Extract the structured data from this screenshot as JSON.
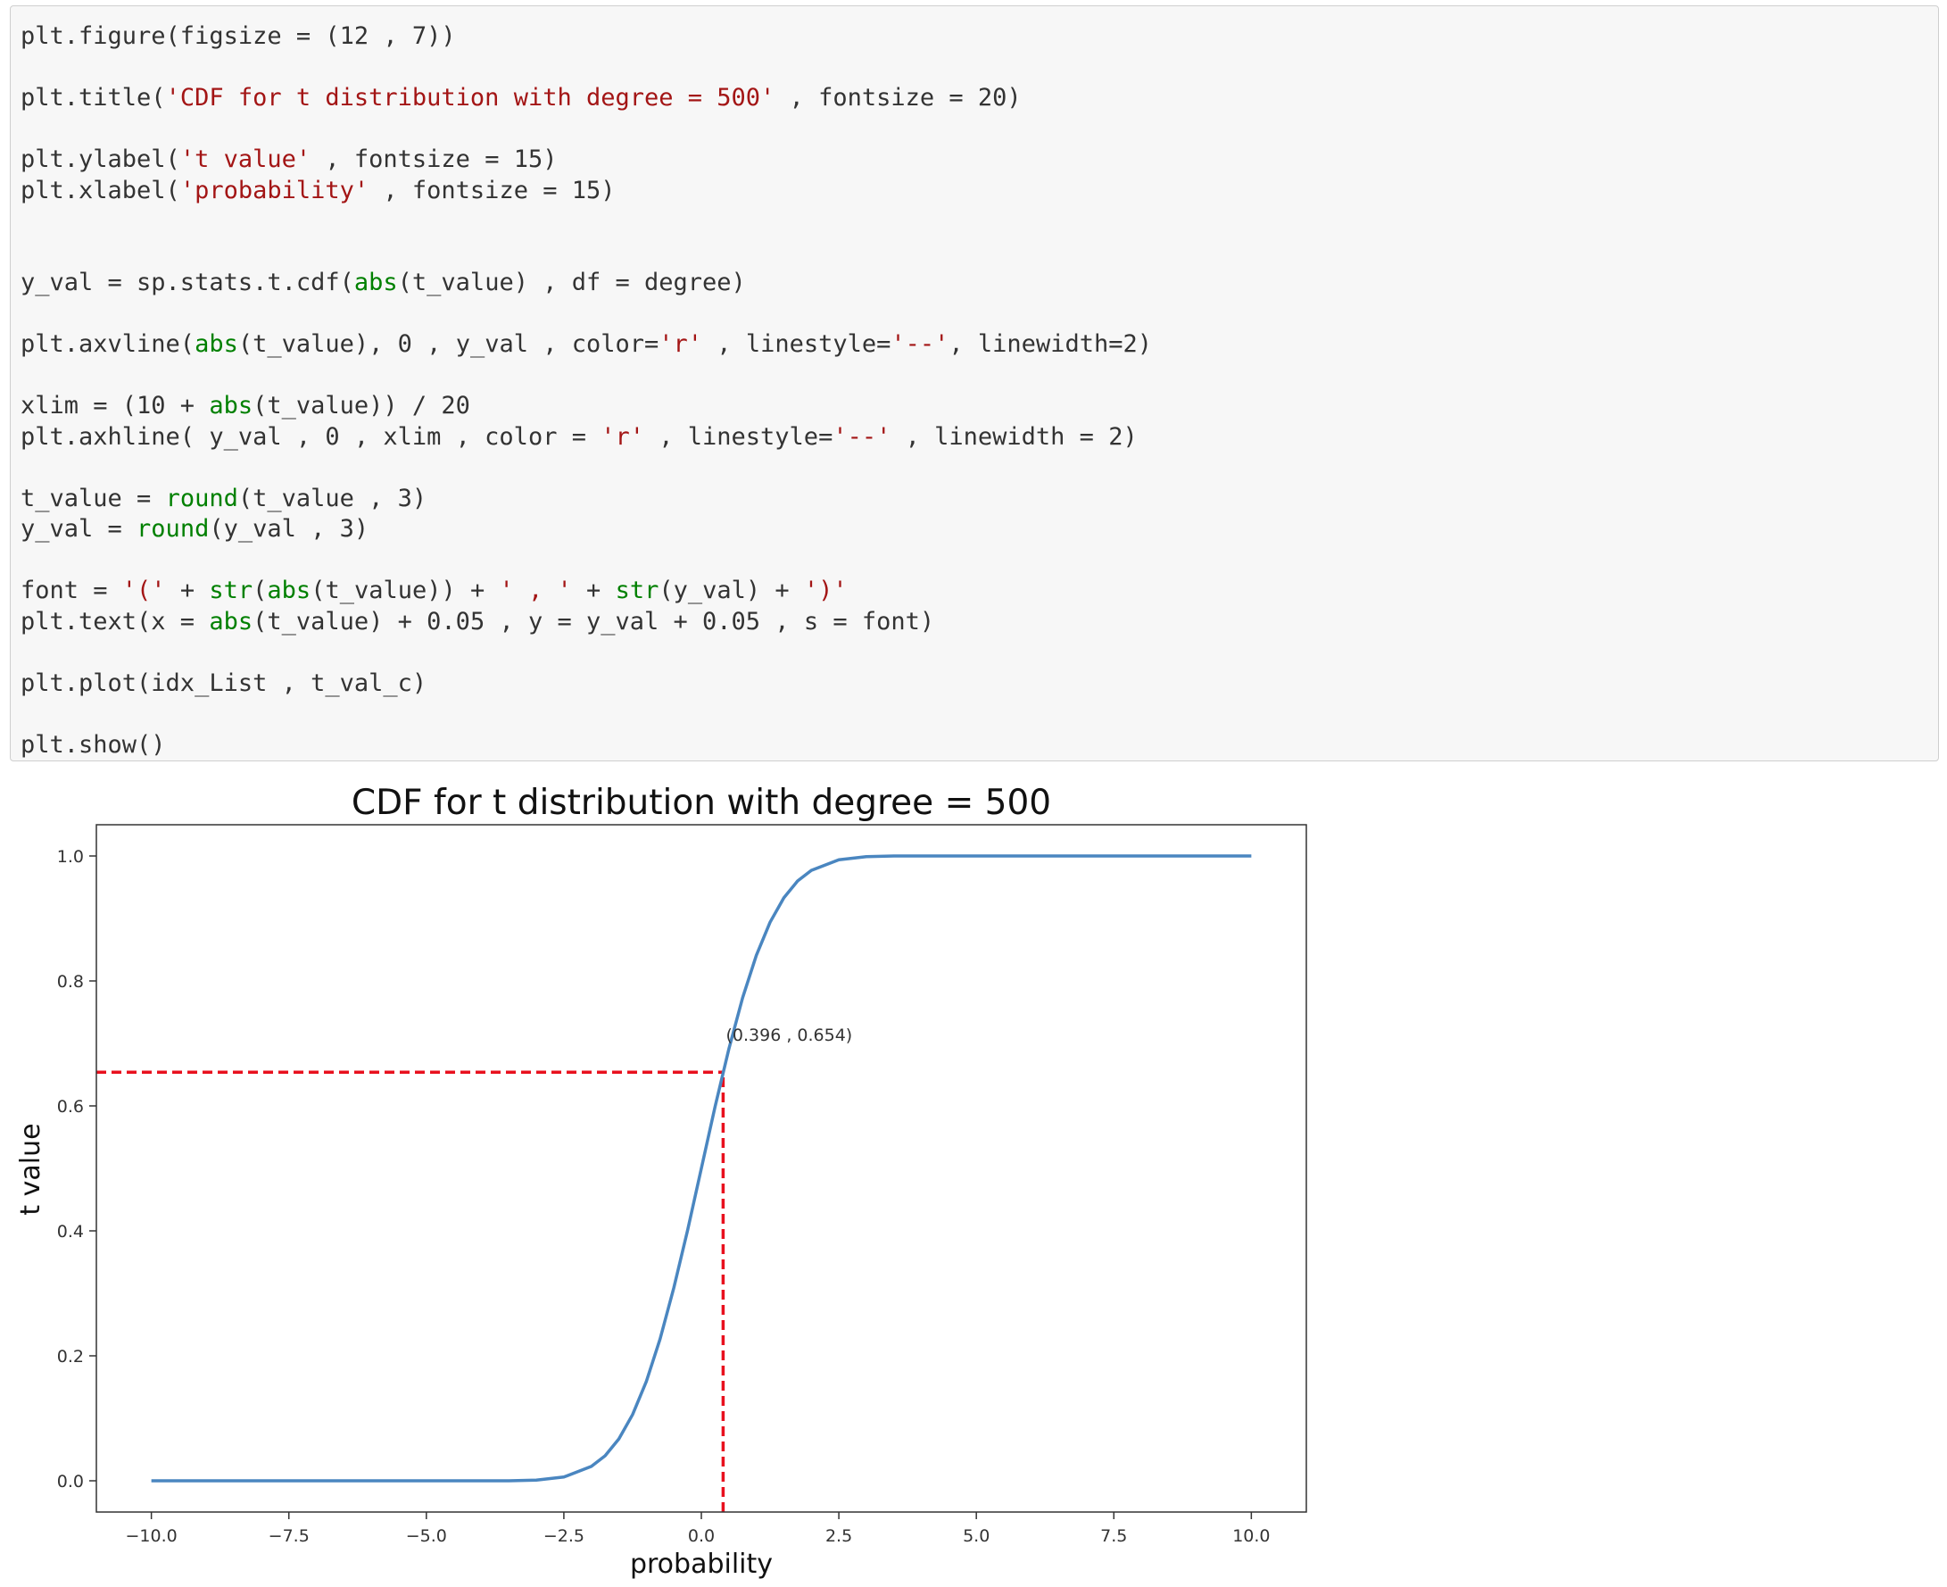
{
  "code": [
    [
      [
        {
          "text": "plt.figure(figsize = (12 , 7))"
        }
      ]
    ],
    [
      [
        {
          "text": "plt.title("
        },
        {
          "text": "'CDF for t distribution with degree = 500'",
          "color": "#a31515"
        },
        {
          "text": " , fontsize = 20)"
        }
      ]
    ],
    [
      [
        {
          "text": "plt.ylabel("
        },
        {
          "text": "'t value'",
          "color": "#a31515"
        },
        {
          "text": " , fontsize = 15)"
        }
      ],
      [
        {
          "text": "plt.xlabel("
        },
        {
          "text": "'probability'",
          "color": "#a31515"
        },
        {
          "text": " , fontsize = 15)"
        }
      ]
    ],
    [
      [
        {
          "text": "y_val = sp.stats.t.cdf("
        },
        {
          "text": "abs",
          "color": "#008000"
        },
        {
          "text": "(t_value) , df = degree)"
        }
      ]
    ],
    [
      [
        {
          "text": "plt.axvline("
        },
        {
          "text": "abs",
          "color": "#008000"
        },
        {
          "text": "(t_value), 0 , y_val , color="
        },
        {
          "text": "'r'",
          "color": "#a31515"
        },
        {
          "text": " , linestyle="
        },
        {
          "text": "'--'",
          "color": "#a31515"
        },
        {
          "text": ", linewidth=2)"
        }
      ]
    ],
    [
      [
        {
          "text": "xlim = (10 + "
        },
        {
          "text": "abs",
          "color": "#008000"
        },
        {
          "text": "(t_value)) / 20"
        }
      ],
      [
        {
          "text": "plt.axhline( y_val , 0 , xlim , color = "
        },
        {
          "text": "'r'",
          "color": "#a31515"
        },
        {
          "text": " , linestyle="
        },
        {
          "text": "'--'",
          "color": "#a31515"
        },
        {
          "text": " , linewidth = 2)"
        }
      ]
    ],
    [
      [
        {
          "text": "t_value = "
        },
        {
          "text": "round",
          "color": "#008000"
        },
        {
          "text": "(t_value , 3)"
        }
      ],
      [
        {
          "text": "y_val = "
        },
        {
          "text": "round",
          "color": "#008000"
        },
        {
          "text": "(y_val , 3)"
        }
      ]
    ],
    [
      [
        {
          "text": "font = "
        },
        {
          "text": "'('",
          "color": "#a31515"
        },
        {
          "text": " + "
        },
        {
          "text": "str",
          "color": "#008000"
        },
        {
          "text": "("
        },
        {
          "text": "abs",
          "color": "#008000"
        },
        {
          "text": "(t_value)) + "
        },
        {
          "text": "' , '",
          "color": "#a31515"
        },
        {
          "text": " + "
        },
        {
          "text": "str",
          "color": "#008000"
        },
        {
          "text": "(y_val) + "
        },
        {
          "text": "')'",
          "color": "#a31515"
        }
      ],
      [
        {
          "text": "plt.text(x = "
        },
        {
          "text": "abs",
          "color": "#008000"
        },
        {
          "text": "(t_value) + 0.05 , y = y_val + 0.05 , s = font)"
        }
      ]
    ],
    [
      [
        {
          "text": "plt.plot(idx_List , t_val_c)"
        }
      ]
    ],
    [
      [
        {
          "text": "plt.show()"
        }
      ]
    ]
  ],
  "chart_data": {
    "type": "line",
    "title": "CDF for t distribution with degree = 500",
    "x_label": "probability",
    "y_label": "t value",
    "x": [
      -10,
      -7.5,
      -5,
      -4,
      -3.5,
      -3,
      -2.5,
      -2,
      -1.75,
      -1.5,
      -1.25,
      -1,
      -0.75,
      -0.5,
      -0.25,
      0,
      0.25,
      0.5,
      0.75,
      1,
      1.25,
      1.5,
      1.75,
      2,
      2.5,
      3,
      3.5,
      4,
      5,
      7.5,
      10
    ],
    "series": [
      {
        "color": "#4a86c0",
        "values": [
          0,
          0,
          0,
          0,
          0,
          0.001,
          0.006,
          0.023,
          0.04,
          0.067,
          0.106,
          0.159,
          0.227,
          0.309,
          0.401,
          0.5,
          0.599,
          0.691,
          0.773,
          0.841,
          0.894,
          0.933,
          0.96,
          0.977,
          0.994,
          0.999,
          1,
          1,
          1,
          1,
          1
        ]
      }
    ],
    "reference_lines": {
      "x": 0.396,
      "y": 0.654,
      "color": "#e8101e"
    },
    "annotation": {
      "text": "(0.396 , 0.654)",
      "x": 0.446,
      "y": 0.704
    },
    "xlim": [
      -11,
      11
    ],
    "ylim": [
      -0.05,
      1.05
    ],
    "xticks": [
      {
        "value": -10,
        "label": "−10.0"
      },
      {
        "value": -7.5,
        "label": "−7.5"
      },
      {
        "value": -5,
        "label": "−5.0"
      },
      {
        "value": -2.5,
        "label": "−2.5"
      },
      {
        "value": 0,
        "label": "0.0"
      },
      2.5,
      {
        "value": 5,
        "label": "5.0"
      },
      7.5,
      {
        "value": 10,
        "label": "10.0"
      }
    ],
    "yticks": [
      {
        "value": 0,
        "label": "0.0"
      },
      0.2,
      0.4,
      0.6,
      0.8,
      {
        "value": 1,
        "label": "1.0"
      }
    ],
    "grid": false
  }
}
